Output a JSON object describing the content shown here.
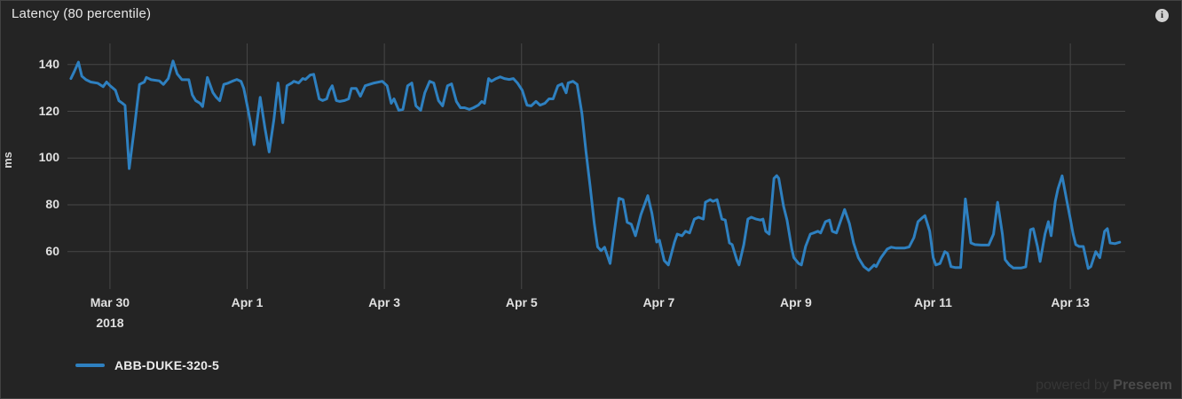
{
  "panel": {
    "title": "Latency (80 percentile)",
    "info_icon_glyph": "i",
    "legend": [
      {
        "label": "ABB-DUKE-320-5",
        "color": "#2e80c0"
      }
    ],
    "watermark": {
      "prefix": "powered by",
      "brand": "Preseem"
    }
  },
  "chart_data": {
    "type": "line",
    "title": "Latency (80 percentile)",
    "ylabel": "ms",
    "xlabel": "",
    "unit": "ms",
    "grid": true,
    "legend_position": "bottom-left",
    "x_unit": "days since 2018-03-30 00:00",
    "x_start": "Mar 29 2018",
    "x_end": "Apr 13 2018",
    "ylim": [
      44,
      149
    ],
    "xlim": [
      -0.62,
      14.8
    ],
    "y_ticks": [
      60,
      80,
      100,
      120,
      140
    ],
    "x_ticks": [
      {
        "t": 0,
        "label": "Mar 30",
        "sublabel": "2018"
      },
      {
        "t": 2,
        "label": "Apr 1"
      },
      {
        "t": 4,
        "label": "Apr 3"
      },
      {
        "t": 6,
        "label": "Apr 5"
      },
      {
        "t": 8,
        "label": "Apr 7"
      },
      {
        "t": 10,
        "label": "Apr 9"
      },
      {
        "t": 12,
        "label": "Apr 11"
      },
      {
        "t": 14,
        "label": "Apr 13"
      }
    ],
    "series": [
      {
        "name": "ABB-DUKE-320-5",
        "color": "#2e80c0",
        "points": [
          [
            -0.57,
            134
          ],
          [
            -0.52,
            137
          ],
          [
            -0.46,
            141
          ],
          [
            -0.41,
            135
          ],
          [
            -0.35,
            133.5
          ],
          [
            -0.28,
            132.5
          ],
          [
            -0.18,
            132
          ],
          [
            -0.1,
            130.5
          ],
          [
            -0.05,
            132.5
          ],
          [
            0.0,
            131
          ],
          [
            0.08,
            129
          ],
          [
            0.13,
            124.5
          ],
          [
            0.18,
            123.5
          ],
          [
            0.22,
            122.5
          ],
          [
            0.28,
            95.5
          ],
          [
            0.36,
            114
          ],
          [
            0.43,
            131.5
          ],
          [
            0.5,
            132.5
          ],
          [
            0.53,
            134.5
          ],
          [
            0.6,
            133.5
          ],
          [
            0.72,
            133
          ],
          [
            0.78,
            131.5
          ],
          [
            0.85,
            134
          ],
          [
            0.92,
            141.5
          ],
          [
            0.98,
            136
          ],
          [
            1.05,
            133.5
          ],
          [
            1.15,
            133.5
          ],
          [
            1.2,
            127
          ],
          [
            1.25,
            124.5
          ],
          [
            1.31,
            123.5
          ],
          [
            1.35,
            122
          ],
          [
            1.42,
            134.5
          ],
          [
            1.5,
            128
          ],
          [
            1.55,
            126
          ],
          [
            1.6,
            124.5
          ],
          [
            1.66,
            131.5
          ],
          [
            1.72,
            132
          ],
          [
            1.78,
            132.8
          ],
          [
            1.85,
            133.6
          ],
          [
            1.91,
            132.8
          ],
          [
            1.95,
            129.8
          ],
          [
            2.0,
            122.6
          ],
          [
            2.05,
            115
          ],
          [
            2.1,
            105.7
          ],
          [
            2.15,
            117
          ],
          [
            2.19,
            126
          ],
          [
            2.26,
            112.8
          ],
          [
            2.32,
            102.6
          ],
          [
            2.39,
            116.6
          ],
          [
            2.45,
            132.1
          ],
          [
            2.52,
            115.1
          ],
          [
            2.58,
            130.9
          ],
          [
            2.65,
            132.1
          ],
          [
            2.68,
            132.8
          ],
          [
            2.75,
            132.1
          ],
          [
            2.81,
            134
          ],
          [
            2.85,
            133.6
          ],
          [
            2.92,
            135.5
          ],
          [
            2.97,
            135.8
          ],
          [
            3.05,
            125.3
          ],
          [
            3.1,
            124.6
          ],
          [
            3.16,
            125.3
          ],
          [
            3.2,
            129
          ],
          [
            3.24,
            130.9
          ],
          [
            3.3,
            124.6
          ],
          [
            3.35,
            124.2
          ],
          [
            3.42,
            124.6
          ],
          [
            3.48,
            125.3
          ],
          [
            3.52,
            129.8
          ],
          [
            3.59,
            129.8
          ],
          [
            3.65,
            126.4
          ],
          [
            3.72,
            130.9
          ],
          [
            3.85,
            132.1
          ],
          [
            3.97,
            132.8
          ],
          [
            4.04,
            130.9
          ],
          [
            4.1,
            123.4
          ],
          [
            4.14,
            125.3
          ],
          [
            4.21,
            120.4
          ],
          [
            4.27,
            120.8
          ],
          [
            4.34,
            130.9
          ],
          [
            4.4,
            132.1
          ],
          [
            4.46,
            122.3
          ],
          [
            4.53,
            120.4
          ],
          [
            4.59,
            127.9
          ],
          [
            4.66,
            132.8
          ],
          [
            4.72,
            132.1
          ],
          [
            4.79,
            124.5
          ],
          [
            4.85,
            122.3
          ],
          [
            4.92,
            130.9
          ],
          [
            4.98,
            131.7
          ],
          [
            5.05,
            124.2
          ],
          [
            5.11,
            121.5
          ],
          [
            5.17,
            121.5
          ],
          [
            5.24,
            120.8
          ],
          [
            5.3,
            121.5
          ],
          [
            5.37,
            122.6
          ],
          [
            5.42,
            124.2
          ],
          [
            5.46,
            123.4
          ],
          [
            5.52,
            134
          ],
          [
            5.56,
            132.8
          ],
          [
            5.63,
            134
          ],
          [
            5.69,
            134.7
          ],
          [
            5.75,
            134
          ],
          [
            5.82,
            133.6
          ],
          [
            5.88,
            134
          ],
          [
            5.94,
            132.1
          ],
          [
            6.01,
            129
          ],
          [
            6.08,
            122.6
          ],
          [
            6.14,
            122.3
          ],
          [
            6.21,
            124.2
          ],
          [
            6.27,
            122.6
          ],
          [
            6.34,
            123.4
          ],
          [
            6.4,
            125.3
          ],
          [
            6.46,
            125.3
          ],
          [
            6.53,
            130.9
          ],
          [
            6.59,
            131.7
          ],
          [
            6.65,
            127.9
          ],
          [
            6.68,
            132.1
          ],
          [
            6.75,
            132.8
          ],
          [
            6.81,
            131.5
          ],
          [
            6.88,
            119
          ],
          [
            6.94,
            102.6
          ],
          [
            7.0,
            88
          ],
          [
            7.06,
            72
          ],
          [
            7.11,
            62
          ],
          [
            7.16,
            60.4
          ],
          [
            7.21,
            61.9
          ],
          [
            7.29,
            54.9
          ],
          [
            7.35,
            68
          ],
          [
            7.42,
            82.8
          ],
          [
            7.48,
            82.2
          ],
          [
            7.54,
            72.5
          ],
          [
            7.6,
            71.7
          ],
          [
            7.66,
            66.8
          ],
          [
            7.74,
            75.8
          ],
          [
            7.84,
            83.9
          ],
          [
            7.9,
            76.5
          ],
          [
            7.97,
            64.1
          ],
          [
            8.01,
            64.9
          ],
          [
            8.08,
            56.2
          ],
          [
            8.14,
            54.3
          ],
          [
            8.23,
            64.1
          ],
          [
            8.27,
            67.5
          ],
          [
            8.34,
            66.8
          ],
          [
            8.39,
            68.7
          ],
          [
            8.45,
            68
          ],
          [
            8.52,
            73.9
          ],
          [
            8.58,
            74.7
          ],
          [
            8.65,
            73.9
          ],
          [
            8.68,
            81.1
          ],
          [
            8.75,
            82.2
          ],
          [
            8.79,
            81.5
          ],
          [
            8.85,
            82.2
          ],
          [
            8.92,
            73.9
          ],
          [
            8.97,
            73.5
          ],
          [
            9.03,
            63.7
          ],
          [
            9.07,
            63
          ],
          [
            9.14,
            56.2
          ],
          [
            9.17,
            54.3
          ],
          [
            9.24,
            63
          ],
          [
            9.3,
            73.9
          ],
          [
            9.35,
            74.7
          ],
          [
            9.42,
            73.9
          ],
          [
            9.48,
            73.5
          ],
          [
            9.52,
            73.9
          ],
          [
            9.56,
            68.7
          ],
          [
            9.61,
            67.5
          ],
          [
            9.68,
            91.3
          ],
          [
            9.72,
            92.5
          ],
          [
            9.75,
            91.3
          ],
          [
            9.82,
            79.4
          ],
          [
            9.87,
            73.5
          ],
          [
            9.94,
            61.1
          ],
          [
            9.97,
            57.4
          ],
          [
            10.04,
            54.9
          ],
          [
            10.08,
            54.3
          ],
          [
            10.14,
            62.2
          ],
          [
            10.21,
            67.5
          ],
          [
            10.26,
            68
          ],
          [
            10.32,
            68.7
          ],
          [
            10.36,
            68
          ],
          [
            10.43,
            72.8
          ],
          [
            10.49,
            73.5
          ],
          [
            10.53,
            68.7
          ],
          [
            10.59,
            68
          ],
          [
            10.66,
            73.9
          ],
          [
            10.71,
            78
          ],
          [
            10.78,
            72
          ],
          [
            10.84,
            63.7
          ],
          [
            10.91,
            57.4
          ],
          [
            10.99,
            53.6
          ],
          [
            11.06,
            52
          ],
          [
            11.14,
            54.3
          ],
          [
            11.17,
            53.6
          ],
          [
            11.24,
            57.4
          ],
          [
            11.33,
            61.1
          ],
          [
            11.39,
            61.9
          ],
          [
            11.46,
            61.5
          ],
          [
            11.58,
            61.5
          ],
          [
            11.65,
            62
          ],
          [
            11.72,
            66
          ],
          [
            11.78,
            72.8
          ],
          [
            11.85,
            74.7
          ],
          [
            11.88,
            75.4
          ],
          [
            11.95,
            68.7
          ],
          [
            12.0,
            57.4
          ],
          [
            12.04,
            54.3
          ],
          [
            12.1,
            54.9
          ],
          [
            12.17,
            60
          ],
          [
            12.21,
            59.2
          ],
          [
            12.26,
            53.6
          ],
          [
            12.32,
            53.2
          ],
          [
            12.4,
            53.2
          ],
          [
            12.47,
            82.5
          ],
          [
            12.55,
            63.7
          ],
          [
            12.61,
            63
          ],
          [
            12.7,
            62.8
          ],
          [
            12.81,
            62.8
          ],
          [
            12.88,
            67.5
          ],
          [
            12.94,
            81.1
          ],
          [
            13.01,
            67.5
          ],
          [
            13.05,
            56.6
          ],
          [
            13.11,
            54.3
          ],
          [
            13.17,
            53
          ],
          [
            13.28,
            53
          ],
          [
            13.35,
            53.5
          ],
          [
            13.42,
            69.4
          ],
          [
            13.46,
            69.8
          ],
          [
            13.52,
            62.2
          ],
          [
            13.56,
            55.8
          ],
          [
            13.63,
            67.5
          ],
          [
            13.68,
            72.8
          ],
          [
            13.72,
            66.8
          ],
          [
            13.78,
            81.5
          ],
          [
            13.82,
            86.8
          ],
          [
            13.88,
            92.4
          ],
          [
            13.95,
            81.5
          ],
          [
            14.0,
            73.9
          ],
          [
            14.04,
            67.5
          ],
          [
            14.08,
            63
          ],
          [
            14.13,
            62.2
          ],
          [
            14.19,
            62.2
          ],
          [
            14.26,
            52.8
          ],
          [
            14.3,
            53.6
          ],
          [
            14.37,
            60
          ],
          [
            14.43,
            57.4
          ],
          [
            14.5,
            68.7
          ],
          [
            14.54,
            69.8
          ],
          [
            14.58,
            63.7
          ],
          [
            14.65,
            63.4
          ],
          [
            14.72,
            64
          ]
        ]
      }
    ]
  }
}
